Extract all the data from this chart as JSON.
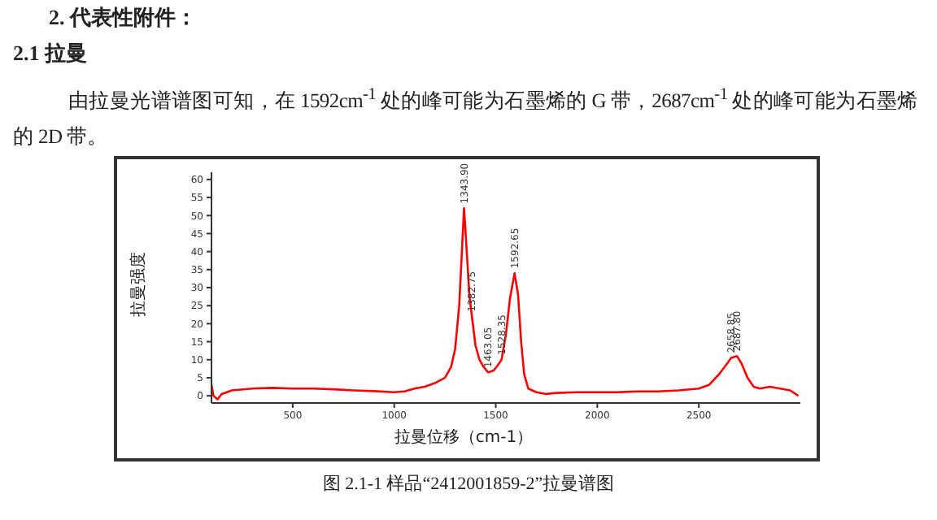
{
  "chart_data": {
    "type": "line",
    "xlabel": "拉曼位移（cm-1）",
    "ylabel": "拉曼强度",
    "x": [
      100,
      110,
      130,
      150,
      200,
      300,
      400,
      500,
      600,
      700,
      800,
      900,
      1000,
      1050,
      1100,
      1150,
      1200,
      1250,
      1280,
      1300,
      1320,
      1335,
      1343.9,
      1355,
      1370,
      1382.75,
      1400,
      1420,
      1440,
      1463.05,
      1490,
      1510,
      1528.35,
      1550,
      1570,
      1592.65,
      1610,
      1625,
      1640,
      1660,
      1700,
      1750,
      1800,
      1900,
      2000,
      2100,
      2200,
      2300,
      2400,
      2500,
      2550,
      2600,
      2640,
      2658.85,
      2687.8,
      2710,
      2740,
      2770,
      2800,
      2850,
      2900,
      2950,
      2990
    ],
    "series": [
      {
        "color": "#ff0000",
        "values": [
          3,
          0,
          -1,
          0.5,
          1.5,
          2,
          2.2,
          2,
          2,
          1.8,
          1.5,
          1.3,
          1,
          1.2,
          2,
          2.5,
          3.5,
          5,
          8,
          13,
          25,
          42,
          52,
          42,
          28,
          22,
          14,
          10,
          8,
          6.5,
          7,
          8.5,
          10,
          17,
          27,
          34,
          28,
          15,
          6,
          2,
          1,
          0.5,
          0.8,
          1,
          1,
          1,
          1.2,
          1.2,
          1.5,
          2,
          3,
          6,
          9,
          10.5,
          11,
          9,
          5,
          2.5,
          2,
          2.5,
          2,
          1.5,
          0
        ]
      }
    ],
    "xlim": [
      100,
      3000
    ],
    "xticks": [
      500,
      1000,
      1500,
      2000,
      2500
    ],
    "ylim": [
      -2,
      62
    ],
    "yticks": [
      0,
      5,
      10,
      15,
      20,
      25,
      30,
      35,
      40,
      45,
      50,
      55,
      60
    ],
    "grid": false,
    "legend": false,
    "marker": "none",
    "annotations": [
      "2.  代表性附件：",
      "2.1  拉曼",
      "由拉曼光谱谱图可知，在 1592cm$^{-1}$ 处的峰可能为石墨烯的 G 带，2687cm$^{-1}$ 处的峰可能为石墨烯的 2D 带。",
      {
        "text": "1343.90",
        "x": 1343.9,
        "y": 52
      },
      {
        "text": "1382.75",
        "x": 1382.75,
        "y": 22
      },
      {
        "text": "1463.05",
        "x": 1463.05,
        "y": 6.5
      },
      {
        "text": "1528.35",
        "x": 1528.35,
        "y": 10
      },
      {
        "text": "1592.65",
        "x": 1592.65,
        "y": 34
      },
      {
        "text": "2658.85",
        "x": 2658.85,
        "y": 10.5
      },
      {
        "text": "2687.80",
        "x": 2687.8,
        "y": 11
      },
      "图 2.1-1  样品“2412001859-2”拉曼谱图"
    ]
  }
}
